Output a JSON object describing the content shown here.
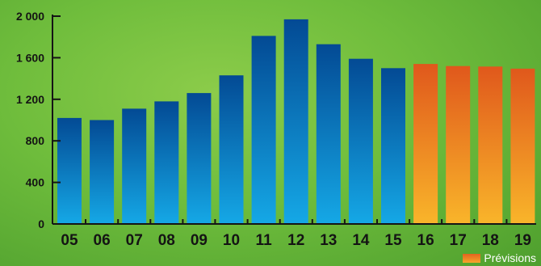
{
  "chart_data": {
    "type": "bar",
    "categories": [
      "05",
      "06",
      "07",
      "08",
      "09",
      "10",
      "11",
      "12",
      "13",
      "14",
      "15",
      "16",
      "17",
      "18",
      "19"
    ],
    "values": [
      1020,
      1000,
      1110,
      1180,
      1260,
      1430,
      1810,
      1970,
      1730,
      1590,
      1500,
      1540,
      1520,
      1515,
      1495
    ],
    "forecast_from_category": "16",
    "title": "",
    "xlabel": "",
    "ylabel": "",
    "ylim": [
      0,
      2000
    ],
    "y_ticks": [
      0,
      400,
      800,
      1200,
      1600,
      2000
    ],
    "y_tick_labels": [
      "0",
      "400",
      "800",
      "1 200",
      "1 600",
      "2 000"
    ],
    "legend": {
      "position": "bottom-right",
      "entries": [
        {
          "label": "Prévisions",
          "color": "#f08a24"
        }
      ]
    },
    "colors": {
      "actual_top": "#034a94",
      "actual_bottom": "#15a8e6",
      "forecast_top": "#e0581c",
      "forecast_bottom": "#f9b52a",
      "axis": "#151515"
    },
    "grid": false
  }
}
